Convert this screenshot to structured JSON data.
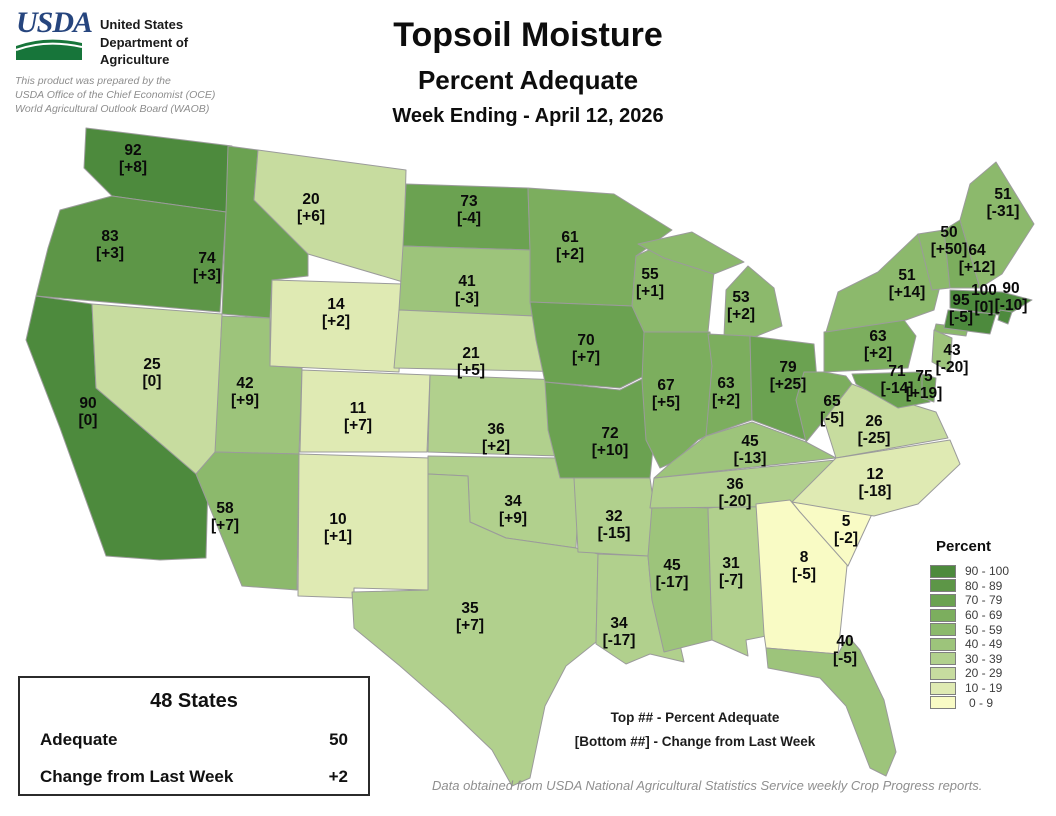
{
  "header": {
    "logo_text": "USDA",
    "agency_lines": [
      "United States",
      "Department of",
      "Agriculture"
    ],
    "disclaimer_lines": [
      "This product was prepared by the",
      "USDA Office of the Chief Economist (OCE)",
      "World Agricultural Outlook Board (WAOB)"
    ]
  },
  "title": {
    "main": "Topsoil Moisture",
    "subtitle": "Percent Adequate",
    "week": "Week Ending - April 12, 2026"
  },
  "legend": {
    "title": "Percent",
    "classes": [
      {
        "range": "90 - 100",
        "color": "#4d8a3d"
      },
      {
        "range": "80 - 89",
        "color": "#5d9647"
      },
      {
        "range": "70 - 79",
        "color": "#6ba251"
      },
      {
        "range": "60 - 69",
        "color": "#7cae5e"
      },
      {
        "range": "50 - 59",
        "color": "#8cb96c"
      },
      {
        "range": "40 - 49",
        "color": "#9dc47b"
      },
      {
        "range": "30 - 39",
        "color": "#b1d08d"
      },
      {
        "range": "20 - 29",
        "color": "#c7dc9f"
      },
      {
        "range": "10 - 19",
        "color": "#dfeab3"
      },
      {
        "range": "0 - 9",
        "color": "#f9fbc5"
      }
    ]
  },
  "summary_box": {
    "title": "48 States",
    "rows": [
      {
        "label": "Adequate",
        "value": "50"
      },
      {
        "label": "Change from Last Week",
        "value": "+2"
      }
    ]
  },
  "notes": [
    "Top ## - Percent Adequate",
    "[Bottom ##] - Change from Last Week"
  ],
  "footer": "Data obtained from USDA National Agricultural Statistics Service weekly Crop Progress reports.",
  "chart_data": {
    "type": "choropleth",
    "region": "conterminous-us-48-states",
    "value_label": "Percent Adequate",
    "change_label": "Change from Last Week",
    "states": [
      {
        "id": "WA",
        "value": 92,
        "change": "+8"
      },
      {
        "id": "OR",
        "value": 83,
        "change": "+3"
      },
      {
        "id": "CA",
        "value": 90,
        "change": "0"
      },
      {
        "id": "NV",
        "value": 25,
        "change": "0"
      },
      {
        "id": "ID",
        "value": 74,
        "change": "+3"
      },
      {
        "id": "MT",
        "value": 20,
        "change": "+6"
      },
      {
        "id": "WY",
        "value": 14,
        "change": "+2"
      },
      {
        "id": "UT",
        "value": 42,
        "change": "+9"
      },
      {
        "id": "CO",
        "value": 11,
        "change": "+7"
      },
      {
        "id": "AZ",
        "value": 58,
        "change": "+7"
      },
      {
        "id": "NM",
        "value": 10,
        "change": "+1"
      },
      {
        "id": "ND",
        "value": 73,
        "change": "-4"
      },
      {
        "id": "SD",
        "value": 41,
        "change": "-3"
      },
      {
        "id": "NE",
        "value": 21,
        "change": "+5"
      },
      {
        "id": "KS",
        "value": 36,
        "change": "+2"
      },
      {
        "id": "OK",
        "value": 34,
        "change": "+9"
      },
      {
        "id": "TX",
        "value": 35,
        "change": "+7"
      },
      {
        "id": "MN",
        "value": 61,
        "change": "+2"
      },
      {
        "id": "IA",
        "value": 70,
        "change": "+7"
      },
      {
        "id": "MO",
        "value": 72,
        "change": "+10"
      },
      {
        "id": "AR",
        "value": 32,
        "change": "-15"
      },
      {
        "id": "LA",
        "value": 34,
        "change": "-17"
      },
      {
        "id": "WI",
        "value": 55,
        "change": "+1"
      },
      {
        "id": "IL",
        "value": 67,
        "change": "+5"
      },
      {
        "id": "MS",
        "value": 45,
        "change": "-17"
      },
      {
        "id": "MI",
        "value": 53,
        "change": "+2"
      },
      {
        "id": "IN",
        "value": 63,
        "change": "+2"
      },
      {
        "id": "AL",
        "value": 31,
        "change": "-7"
      },
      {
        "id": "TN",
        "value": 36,
        "change": "-20"
      },
      {
        "id": "KY",
        "value": 45,
        "change": "-13"
      },
      {
        "id": "OH",
        "value": 79,
        "change": "+25"
      },
      {
        "id": "GA",
        "value": 8,
        "change": "-5"
      },
      {
        "id": "WV",
        "value": 65,
        "change": "-5"
      },
      {
        "id": "VA",
        "value": 26,
        "change": "-25"
      },
      {
        "id": "SC",
        "value": 5,
        "change": "-2"
      },
      {
        "id": "FL",
        "value": 40,
        "change": "-5"
      },
      {
        "id": "NC",
        "value": 12,
        "change": "-18"
      },
      {
        "id": "PA",
        "value": 63,
        "change": "+2"
      },
      {
        "id": "MD",
        "value": 71,
        "change": "-14"
      },
      {
        "id": "DE",
        "value": 75,
        "change": "+19"
      },
      {
        "id": "NY",
        "value": 51,
        "change": "+14"
      },
      {
        "id": "NJ",
        "value": 43,
        "change": "-20"
      },
      {
        "id": "VT",
        "value": 50,
        "change": "+50"
      },
      {
        "id": "NH",
        "value": 64,
        "change": "+12"
      },
      {
        "id": "ME",
        "value": 51,
        "change": "-31"
      },
      {
        "id": "MA",
        "value": 95,
        "change": "-5"
      },
      {
        "id": "RI",
        "value": 100,
        "change": "0"
      },
      {
        "id": "CT",
        "value": 90,
        "change": "-10"
      }
    ]
  }
}
